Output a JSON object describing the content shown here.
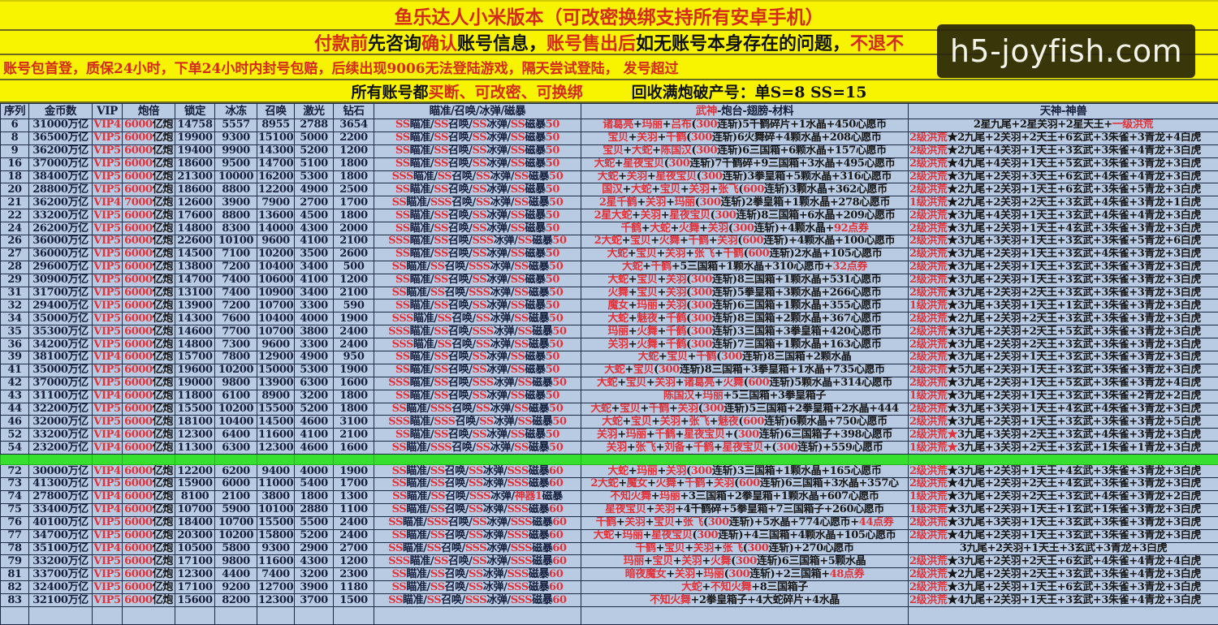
{
  "banner": {
    "line1": "鱼乐达人小米版本（可改密换绑支持所有安卓手机）",
    "line2": [
      {
        "t": "付款前",
        "c": "red"
      },
      {
        "t": "先咨询",
        "c": "black"
      },
      {
        "t": "确认",
        "c": "red"
      },
      {
        "t": "账号信息，",
        "c": "black"
      },
      {
        "t": "账号售出后",
        "c": "red"
      },
      {
        "t": "如无账号本身存在的问题，",
        "c": "black"
      },
      {
        "t": "不退不",
        "c": "red"
      }
    ],
    "line3": "账号包首登，质保24小时，下单24小时内封号包赔，后续出现9006无法登陆游戏，隔天尝试登陆，  发号超过",
    "line4a": "所有账号都",
    "line4b": "买断、可改密、可换绑",
    "line4c": "回收满炮破产号：单S=8   SS=15"
  },
  "watermark": "h5-joyfish.com",
  "colors": {
    "banner": "#f8f400",
    "table": "#b9cbe3",
    "accent_red": "#e0323a",
    "separator": "#37e02e"
  },
  "headers": [
    "序列",
    "金币数",
    "VIP",
    "炮倍",
    "锁定",
    "冰冻",
    "召唤",
    "激光",
    "钻石",
    "瞄准/召唤/冰弹/磁暴",
    "武神-炮台-翅膀-材料",
    "天神-神兽"
  ],
  "headers_red_prefix": {
    "10": "武神"
  },
  "rows_a": [
    [
      "6",
      "31000万亿",
      "VIP4",
      "6000亿炮",
      "14758",
      "5557",
      "8955",
      "2788",
      "3654",
      "SS瞄准/SS召唤/SS冰弹/SS磁暴50",
      "诸葛亮+玛丽+吕布(300连斩)5千鹤碎片+1水晶+450心愿币",
      "2星九尾+2星关羽+2星天王+一级洪荒"
    ],
    [
      "8",
      "36500万亿",
      "VIP5",
      "6000亿炮",
      "19900",
      "9300",
      "15100",
      "5000",
      "2200",
      "SS瞄准/SS召唤/SS冰弹/SS磁暴50",
      "宝贝+关羽+千鹤(300连斩)6火舞碎+4颗水晶+208心愿币",
      "2级洪荒★2九尾+2关羽+2天王+6玄武+3朱雀+3青龙+4白虎"
    ],
    [
      "9",
      "36200万亿",
      "VIP5",
      "6000亿炮",
      "19400",
      "9900",
      "14300",
      "5200",
      "1200",
      "SS瞄准/SS召唤/SS冰弹/SS磁暴50",
      "宝贝+大蛇+陈国汉(300连斩)6三国箱+6颗水晶+157心愿币",
      "2级洪荒★2九尾+4关羽+1天王+3玄武+3朱雀+4青龙+3白虎"
    ],
    [
      "16",
      "37000万亿",
      "VIP5",
      "6000亿炮",
      "18600",
      "9500",
      "14700",
      "5100",
      "1800",
      "SS瞄准/SS召唤/SS冰弹/SS磁暴50",
      "大蛇+星夜宝贝(300连斩)7千鹤碎+9三国箱+3水晶+495心愿币",
      "2级洪荒★4九尾+4关羽+1天王+5玄武+3朱雀+3青龙+3白虎"
    ],
    [
      "18",
      "38400万亿",
      "VIP5",
      "6000亿炮",
      "21300",
      "10000",
      "16200",
      "5300",
      "1800",
      "SSS瞄准/SS召唤/SS冰弹/SS磁暴50",
      "大蛇+关羽+星夜宝贝(300连斩)3拳皇箱+5颗水晶+316心愿币",
      "2级洪荒★3九尾+2关羽+3天王+6玄武+4朱雀+4青龙+3白虎"
    ],
    [
      "20",
      "28800万亿",
      "VIP5",
      "6000亿炮",
      "18600",
      "8800",
      "12200",
      "4900",
      "2500",
      "SS瞄准/SS召唤/SS冰弹/SS磁暴50",
      "国汉+大蛇+宝贝+关羽+张飞(600连斩)3颗水晶+362心愿币",
      "2级洪荒★2九尾+2关羽+1天王+6玄武+3朱雀+5青龙+3白虎"
    ],
    [
      "21",
      "36200万亿",
      "VIP4",
      "7000亿炮",
      "12600",
      "3900",
      "7900",
      "2700",
      "1700",
      "SS瞄准/SSS召唤/SS冰弹/SS磁暴50",
      "2星千鹤+关羽+玛丽(300连斩)2拳皇箱+1颗水晶+278心愿币",
      "1级洪荒★2九尾+2关羽+2天王+3玄武+4朱雀+3青龙+1白虎"
    ],
    [
      "22",
      "33200万亿",
      "VIP5",
      "6000亿炮",
      "17600",
      "8800",
      "13600",
      "4500",
      "1800",
      "SS瞄准/SS召唤/SS冰弹/SS磁暴50",
      "2星大蛇+关羽+星夜宝贝(300连斩)8三国箱+6水晶+209心愿币",
      "2级洪荒★3九尾+4关羽+1天王+3玄武+4朱雀+4青龙+3白虎"
    ],
    [
      "24",
      "26200万亿",
      "VIP5",
      "6000亿炮",
      "14800",
      "8300",
      "14000",
      "4300",
      "2000",
      "SS瞄准/SS召唤/SS冰弹/SS磁暴50",
      "千鹤+大蛇+火舞+关羽(300连斩)+4颗水晶+92点券",
      "2级洪荒★3九尾+2关羽+1天王+4玄武+3朱雀+3青龙+3白虎"
    ],
    [
      "26",
      "36000万亿",
      "VIP5",
      "6000亿炮",
      "22600",
      "10100",
      "9600",
      "4100",
      "2100",
      "SSS瞄准/SS召唤/SSS冰弹/SS磁暴50",
      "2大蛇+宝贝+火舞+千鹤+关羽(600连斩)+4颗水晶+100心愿币",
      "2级洪荒★3九尾+3关羽+1天王+3玄武+3朱雀+5青龙+6白虎"
    ],
    [
      "27",
      "36000万亿",
      "VIP5",
      "6000亿炮",
      "14500",
      "7100",
      "10200",
      "3500",
      "2600",
      "SS瞄准/SS召唤/SS冰弹/SS磁暴50",
      "大蛇+宝贝+关羽+张飞+千鹤(600连斩)2水晶+105心愿币",
      "2级洪荒★3九尾+2关羽+1天王+3玄武+4朱雀+3青龙+3白虎"
    ],
    [
      "28",
      "29600万亿",
      "VIP5",
      "6000亿炮",
      "13800",
      "7200",
      "10400",
      "3400",
      "500",
      "SS瞄准/SS召唤/SSS冰弹/SS磁暴50",
      "大蛇+千鹤+5三国箱+1颗水晶+310心愿币+32点券",
      "2级洪荒★3九尾+2关羽+1天王+3玄武+3朱雀+3青龙+3白虎"
    ],
    [
      "29",
      "30900万亿",
      "VIP5",
      "6000亿炮",
      "14700",
      "7400",
      "10600",
      "4100",
      "1200",
      "SS瞄准/SS召唤/SS冰弹/SS磁暴50",
      "大蛇+宝贝+关羽(300连斩)8三国箱+1颗水晶+531心愿币",
      "2级洪荒★3九尾+2关羽+1天王+3玄武+3朱雀+3青龙+3白虎"
    ],
    [
      "31",
      "31700万亿",
      "VIP5",
      "6000亿炮",
      "13100",
      "7400",
      "10900",
      "3400",
      "2100",
      "SS瞄准/SS召唤/SSS冰弹/SS磁暴50",
      "火舞+宝贝+关羽(300连斩)5拳皇箱+3颗水晶+266心愿币",
      "2级洪荒★3九尾+2关羽+2天王+3玄武+3朱雀+3青龙+3白虎"
    ],
    [
      "32",
      "29400万亿",
      "VIP5",
      "6000亿炮",
      "13900",
      "7200",
      "10700",
      "3300",
      "590",
      "SS瞄准/SS召唤/SS冰弹/SS磁暴50",
      "魔女+玛丽+关羽(300连斩)6三国箱+1颗水晶+355心愿币",
      "1级洪荒★3九尾+3关羽+1天王+1玄武+3朱雀+3青龙+3白虎"
    ],
    [
      "34",
      "35000万亿",
      "VIP5",
      "6000亿炮",
      "14300",
      "7600",
      "10400",
      "4000",
      "1900",
      "SSS瞄准/SS召唤/SS冰弹/SS磁暴50",
      "大蛇+魅夜+千鹤(300连斩)8三国箱+2颗水晶+367心愿币",
      "2级洪荒★2九尾+2关羽+2天王+3玄武+3朱雀+3青龙+3白虎"
    ],
    [
      "35",
      "35300万亿",
      "VIP5",
      "6000亿炮",
      "14600",
      "7700",
      "10700",
      "3800",
      "2400",
      "SSS瞄准/SS召唤/SSS冰弹/SS磁暴50",
      "玛丽+火舞+千鹤(300连斩)3三国箱+3拳皇箱+420心愿币",
      "2级洪荒★3九尾+2关羽+2天王+5玄武+3朱雀+3青龙+3白虎"
    ],
    [
      "36",
      "34200万亿",
      "VIP5",
      "6000亿炮",
      "14800",
      "7300",
      "9600",
      "3300",
      "2400",
      "SSS瞄准/SS召唤/SS冰弹/SS磁暴50",
      "关羽+火舞+千鹤(300连斩)7三国箱+1颗水晶+163心愿币",
      "2级洪荒★3九尾+2关羽+2天王+3玄武+3朱雀+3青龙+3白虎"
    ],
    [
      "39",
      "38100万亿",
      "VIP4",
      "6000亿炮",
      "15700",
      "7800",
      "12900",
      "4900",
      "950",
      "SS瞄准/SS召唤/SS冰弹/SS磁暴50",
      "大蛇+宝贝+千鹤(300连斩)8三国箱+2颗水晶",
      "2级洪荒★3九尾+2关羽+1天王+3玄武+3朱雀+3青龙+3白虎"
    ],
    [
      "41",
      "35000万亿",
      "VIP5",
      "6000亿炮",
      "19600",
      "10200",
      "15000",
      "5300",
      "1900",
      "SS瞄准/SS召唤/SS冰弹/SS磁暴50",
      "大蛇+宝贝(300连斩)8三国箱+3拳皇箱+1水晶+735心愿币",
      "2级洪荒★5九尾+2关羽+1天王+3玄武+3朱雀+3青龙+3白虎"
    ],
    [
      "42",
      "37000万亿",
      "VIP5",
      "6000亿炮",
      "19000",
      "9800",
      "13900",
      "6300",
      "1600",
      "SSS瞄准/SS召唤/SSS冰弹/SS磁暴50",
      "大蛇+宝贝+关羽+诸葛亮+火舞(600连斩)5颗水晶+314心愿币",
      "2级洪荒★3九尾+2关羽+1天王+5玄武+3朱雀+3青龙+4白虎"
    ],
    [
      "43",
      "31100万亿",
      "VIP4",
      "6000亿炮",
      "11800",
      "6100",
      "8900",
      "3200",
      "1800",
      "SS瞄准/SS召唤/SS冰弹/SS磁暴50",
      "陈国汉+玛丽+5三国箱+3拳皇箱子",
      "1级洪荒★3九尾+2关羽+1天王+3玄武+3朱雀+2青龙+2白虎"
    ],
    [
      "44",
      "32200万亿",
      "VIP5",
      "6000亿炮",
      "15500",
      "10200",
      "15500",
      "5200",
      "1800",
      "SS瞄准/SSS召唤/SS冰弹/SS磁暴50",
      "大蛇+宝贝+千鹤+关羽(300连斩)5三国箱+2拳皇箱+2水晶+444",
      "2级洪荒★3九尾+3关羽+1天王+4玄武+4朱雀+3青龙+3白虎"
    ],
    [
      "46",
      "32000万亿",
      "VIP5",
      "6000亿炮",
      "18100",
      "10400",
      "14500",
      "4600",
      "3100",
      "SSS瞄准/SSS召唤/SS冰弹/SS磁暴50",
      "大蛇+宝贝+关羽+张飞+魅夜(600连斩)6颗水晶+750心愿币",
      "2级洪荒★3九尾+2关羽+1天王+3玄武+3朱雀+3青龙+5白虎"
    ],
    [
      "52",
      "33200万亿",
      "VIP4",
      "6000亿炮",
      "12300",
      "6400",
      "11600",
      "4100",
      "2100",
      "SS瞄准/SS召唤/SS冰弹/SS磁暴50",
      "关羽+玛丽+千鹤+星夜宝贝+(300连斩)6三国箱子+398心愿币",
      "2级洪荒★3九尾+3关羽+2天王+3玄武+4朱雀+3青龙+3白虎"
    ],
    [
      "54",
      "23200万亿",
      "VIP4",
      "6000亿炮",
      "11300",
      "6300",
      "12300",
      "4600",
      "1600",
      "SS瞄准/SSS召唤/SS冰弹/SS磁暴50",
      "关羽+张飞+刘备+千鹤+星夜宝贝+(300连斩)+559心愿币",
      "1级洪荒★3九尾+3关羽+2天王+3玄武+1朱雀+1青龙+3白虎"
    ]
  ],
  "rows_b": [
    [
      "72",
      "30000万亿",
      "VIP4",
      "6000亿炮",
      "12200",
      "6200",
      "9400",
      "4000",
      "1900",
      "SS瞄准/SS召唤/SS冰弹/SSS磁暴60",
      "大蛇+玛丽+关羽(300连斩)3三国箱+1颗水晶+165心愿币",
      "2级洪荒★3九尾+2关羽+1天王+4玄武+3朱雀+3青龙+3白虎"
    ],
    [
      "73",
      "41300万亿",
      "VIP5",
      "6000亿炮",
      "15900",
      "6000",
      "11000",
      "5400",
      "1700",
      "SS瞄准/SS召唤/SS冰弹/SSS磁暴60",
      "2大蛇+魔女+火舞+千鹤+关羽(600连斩)6三国箱+3水晶+357心",
      "2级洪荒★4九尾+2关羽+2天王+4玄武+3朱雀+3青龙+3白虎"
    ],
    [
      "74",
      "27800万亿",
      "VIP4",
      "6000亿炮",
      "8100",
      "2100",
      "3800",
      "1800",
      "1300",
      "SS瞄准/SS召唤/SSS冰弹/神器1磁暴",
      "不知火舞+玛丽+3三国箱+2拳皇箱+1颗水晶+607心愿币",
      "1级洪荒★3九尾+2关羽+2天王+3玄武+4朱雀+3青龙+2白虎"
    ],
    [
      "75",
      "33400万亿",
      "VIP4",
      "6000亿炮",
      "10700",
      "5900",
      "10100",
      "2880",
      "1100",
      "SS瞄准/SS召唤/SS冰弹/SSS磁暴60",
      "星夜宝贝+关羽+4千鹤碎+5拳皇箱+7三国箱子+260心愿币",
      "1级洪荒★3九尾+2关羽+1天王+1玄武+1朱雀+3青龙+3白虎"
    ],
    [
      "76",
      "40100万亿",
      "VIP5",
      "6000亿炮",
      "18400",
      "10700",
      "15500",
      "5500",
      "2400",
      "SS瞄准/SSS召唤/SS冰弹/SSS磁暴60",
      "千鹤+关羽+宝贝+张飞(300连斩)+5水晶+774心愿币+44点券",
      "2级洪荒★3九尾+3关羽+1天王+3玄武+3朱雀+3青龙+3白虎"
    ],
    [
      "77",
      "34700万亿",
      "VIP5",
      "6000亿炮",
      "20300",
      "10200",
      "15800",
      "5200",
      "2400",
      "SS瞄准/SS召唤/SS冰弹/SSS磁暴60",
      "大蛇+玛丽+星夜宝贝(300连斩)+4三国箱+4颗水晶+105心愿币",
      "2级洪荒★4九尾+2关羽+1天王+3玄武+3朱雀+3青龙+3白虎"
    ],
    [
      "78",
      "35100万亿",
      "VIP4",
      "6000亿炮",
      "10500",
      "5800",
      "9300",
      "2900",
      "2700",
      "SS瞄准/SS召唤/SSS冰弹/SSS磁暴60",
      "千鹤+宝贝+关羽+张飞(300连斩)+270心愿币",
      "3九尾+2关羽+1天王+3玄武+3青龙+3白虎"
    ],
    [
      "79",
      "33200万亿",
      "VIP5",
      "6000亿炮",
      "17100",
      "9800",
      "11600",
      "4300",
      "1200",
      "SSS瞄准/SS召唤/SS冰弹/SSS磁暴60",
      "玛丽+宝贝+关羽+火舞(300连斩)6三国箱+5颗水晶",
      "2级洪荒★3九尾+2关羽+2天王+6玄武+4朱雀+4青龙+4白虎"
    ],
    [
      "81",
      "33700万亿",
      "VIP5",
      "6000亿炮",
      "12300",
      "4400",
      "7400",
      "3200",
      "2300",
      "SS瞄准/SS召唤/SS冰弹/SSS磁暴60",
      "暗夜魔女+关羽+玛丽(300连斩)+2三国箱+48点券",
      "2级洪荒★2九尾+2关羽+2天王+3玄武+3朱雀+4青龙+3白虎"
    ],
    [
      "82",
      "32400万亿",
      "VIP5",
      "6000亿炮",
      "17100",
      "9200",
      "12700",
      "3900",
      "1180",
      "SS瞄准/SS召唤/SS冰弹/SSS磁暴60",
      "大蛇+不知火舞+8三国箱子",
      "2级洪荒★3九尾+2关羽+1天王+6玄武+3朱雀+3青龙+3白虎"
    ],
    [
      "83",
      "32100万亿",
      "VIP5",
      "6000亿炮",
      "15600",
      "8200",
      "12300",
      "3700",
      "1500",
      "SS瞄准/SS召唤/SSS冰弹/SSS磁暴60",
      "不知火舞+2拳皇箱子+4大蛇碎片+4水晶",
      "2级洪荒★4九尾+2关羽+1天王+3玄武+3朱雀+4青龙+3白虎"
    ]
  ],
  "red_star_rows": [
    "52",
    "54"
  ]
}
